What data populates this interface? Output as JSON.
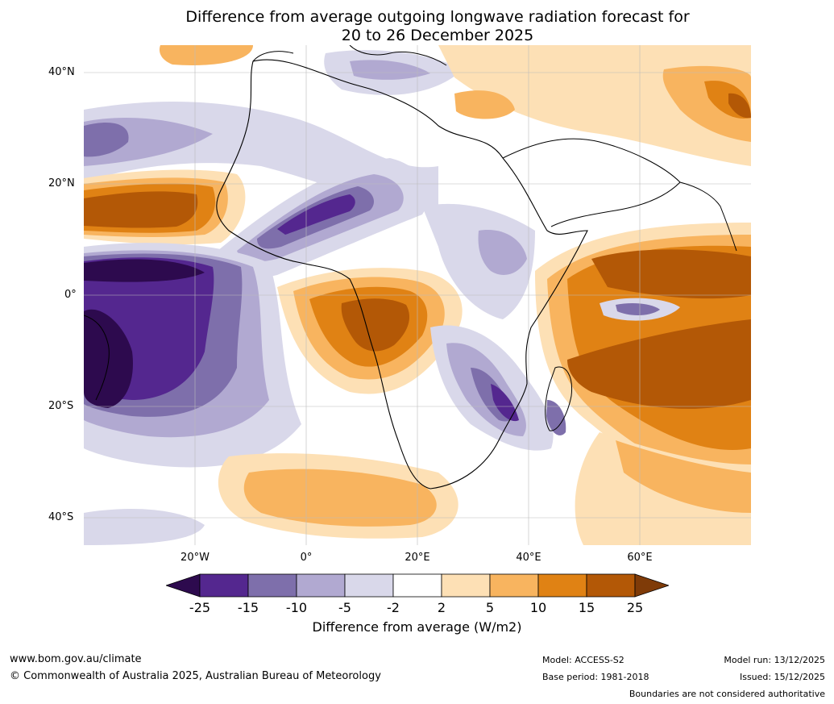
{
  "title_line1": "Difference from average outgoing longwave radiation forecast for",
  "title_line2": "20 to 26 December 2025",
  "lat_labels": [
    "40°N",
    "20°N",
    "0°",
    "20°S",
    "40°S"
  ],
  "lon_labels": [
    "20°W",
    "0°",
    "20°E",
    "40°E",
    "60°E"
  ],
  "colorbar": {
    "ticks": [
      "-25",
      "-15",
      "-10",
      "-5",
      "-2",
      "2",
      "5",
      "10",
      "15",
      "25"
    ],
    "colors": [
      "#2d0a4e",
      "#54278f",
      "#7e6fab",
      "#b1a9d1",
      "#d9d8ea",
      "#ffffff",
      "#fde0b5",
      "#f8b45f",
      "#e08214",
      "#b35806",
      "#7f3b08"
    ],
    "label": "Difference from average (W/m2)"
  },
  "footer": {
    "website": "www.bom.gov.au/climate",
    "copyright": "© Commonwealth of Australia 2025, Australian Bureau of Meteorology",
    "model": "Model: ACCESS-S2",
    "base_period": "Base period: 1981-2018",
    "model_run": "Model run: 13/12/2025",
    "issued": "Issued: 15/12/2025",
    "disclaimer": "Boundaries are not considered authoritative"
  }
}
